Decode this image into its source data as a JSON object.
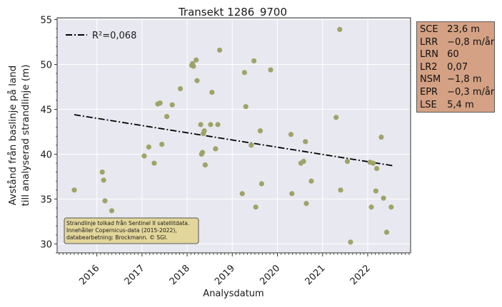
{
  "chart_data": {
    "type": "scatter",
    "title": "Transekt 1286_9700",
    "xlabel": "Analysdatum",
    "ylabel_lines": [
      "Avstånd från baslinje på land",
      "till analyserad strandlinje (m)"
    ],
    "ylim": [
      29,
      55.2
    ],
    "xlim": [
      2015.12,
      2022.95
    ],
    "yticks": [
      30,
      35,
      40,
      45,
      50,
      55
    ],
    "xticks": [
      {
        "value": 2016,
        "label": "2016"
      },
      {
        "value": 2017,
        "label": "2017"
      },
      {
        "value": 2018,
        "label": "2018"
      },
      {
        "value": 2019,
        "label": "2019"
      },
      {
        "value": 2020,
        "label": "2020"
      },
      {
        "value": 2021,
        "label": "2021"
      },
      {
        "value": 2022,
        "label": "2022"
      }
    ],
    "grid": true,
    "legend": {
      "placement": "top-left",
      "label": "R²=0,068"
    },
    "trend_line": {
      "x": [
        2015.5,
        2022.58
      ],
      "y": [
        44.4,
        38.7
      ],
      "color": "#000000",
      "style": "dash-dot"
    },
    "point_color": "#9fa367",
    "points": [
      {
        "x": 2015.5,
        "y": 36.0
      },
      {
        "x": 2016.12,
        "y": 38.0
      },
      {
        "x": 2016.15,
        "y": 37.1
      },
      {
        "x": 2016.18,
        "y": 34.8
      },
      {
        "x": 2016.33,
        "y": 33.7
      },
      {
        "x": 2017.05,
        "y": 39.8
      },
      {
        "x": 2017.15,
        "y": 40.8
      },
      {
        "x": 2017.27,
        "y": 39.0
      },
      {
        "x": 2017.35,
        "y": 45.6
      },
      {
        "x": 2017.4,
        "y": 45.7
      },
      {
        "x": 2017.44,
        "y": 41.1
      },
      {
        "x": 2017.55,
        "y": 44.2
      },
      {
        "x": 2017.67,
        "y": 45.5
      },
      {
        "x": 2017.85,
        "y": 47.3
      },
      {
        "x": 2018.1,
        "y": 49.9
      },
      {
        "x": 2018.12,
        "y": 50.1
      },
      {
        "x": 2018.14,
        "y": 49.8
      },
      {
        "x": 2018.2,
        "y": 50.5
      },
      {
        "x": 2018.22,
        "y": 48.2
      },
      {
        "x": 2018.3,
        "y": 43.3
      },
      {
        "x": 2018.32,
        "y": 40.0
      },
      {
        "x": 2018.34,
        "y": 40.2
      },
      {
        "x": 2018.36,
        "y": 42.3
      },
      {
        "x": 2018.38,
        "y": 42.6
      },
      {
        "x": 2018.4,
        "y": 38.8
      },
      {
        "x": 2018.52,
        "y": 43.3
      },
      {
        "x": 2018.55,
        "y": 46.9
      },
      {
        "x": 2018.63,
        "y": 40.6
      },
      {
        "x": 2018.68,
        "y": 43.3
      },
      {
        "x": 2018.72,
        "y": 51.6
      },
      {
        "x": 2019.22,
        "y": 35.6
      },
      {
        "x": 2019.27,
        "y": 49.1
      },
      {
        "x": 2019.3,
        "y": 45.3
      },
      {
        "x": 2019.42,
        "y": 41.0
      },
      {
        "x": 2019.48,
        "y": 50.4
      },
      {
        "x": 2019.52,
        "y": 34.1
      },
      {
        "x": 2019.62,
        "y": 42.6
      },
      {
        "x": 2019.65,
        "y": 36.7
      },
      {
        "x": 2019.85,
        "y": 49.4
      },
      {
        "x": 2020.3,
        "y": 42.2
      },
      {
        "x": 2020.32,
        "y": 35.6
      },
      {
        "x": 2020.52,
        "y": 39.0
      },
      {
        "x": 2020.58,
        "y": 39.2
      },
      {
        "x": 2020.62,
        "y": 41.4
      },
      {
        "x": 2020.64,
        "y": 34.5
      },
      {
        "x": 2020.75,
        "y": 37.0
      },
      {
        "x": 2021.3,
        "y": 44.1
      },
      {
        "x": 2021.38,
        "y": 53.9
      },
      {
        "x": 2021.4,
        "y": 36.0
      },
      {
        "x": 2021.55,
        "y": 39.2
      },
      {
        "x": 2021.62,
        "y": 30.2
      },
      {
        "x": 2022.05,
        "y": 39.1
      },
      {
        "x": 2022.08,
        "y": 34.1
      },
      {
        "x": 2022.12,
        "y": 39.0
      },
      {
        "x": 2022.18,
        "y": 35.9
      },
      {
        "x": 2022.2,
        "y": 38.4
      },
      {
        "x": 2022.3,
        "y": 41.9
      },
      {
        "x": 2022.35,
        "y": 35.1
      },
      {
        "x": 2022.42,
        "y": 31.3
      },
      {
        "x": 2022.52,
        "y": 34.1
      }
    ],
    "annotation_lines": [
      "Strandlinje tolkad från Sentinel II satellitdata.",
      "Innehåller Copernicus-data (2015-2022),",
      "databearbetning: Brockmann. © SGI."
    ],
    "colors": {
      "plot_bg": "#e8e8f0",
      "grid": "#ffffff",
      "annotation_bg": "#e2d69b",
      "stats_bg": "#d4a184"
    }
  },
  "stats_box": {
    "rows": [
      {
        "key": "SCE",
        "value": "23,6 m"
      },
      {
        "key": "LRR",
        "value": "−0,8 m/år"
      },
      {
        "key": "LRN",
        "value": "60"
      },
      {
        "key": "LR2",
        "value": "0,07"
      },
      {
        "key": "NSM",
        "value": "−1,8 m"
      },
      {
        "key": "EPR",
        "value": "−0,3 m/år"
      },
      {
        "key": "LSE",
        "value": "5,4 m"
      }
    ]
  }
}
